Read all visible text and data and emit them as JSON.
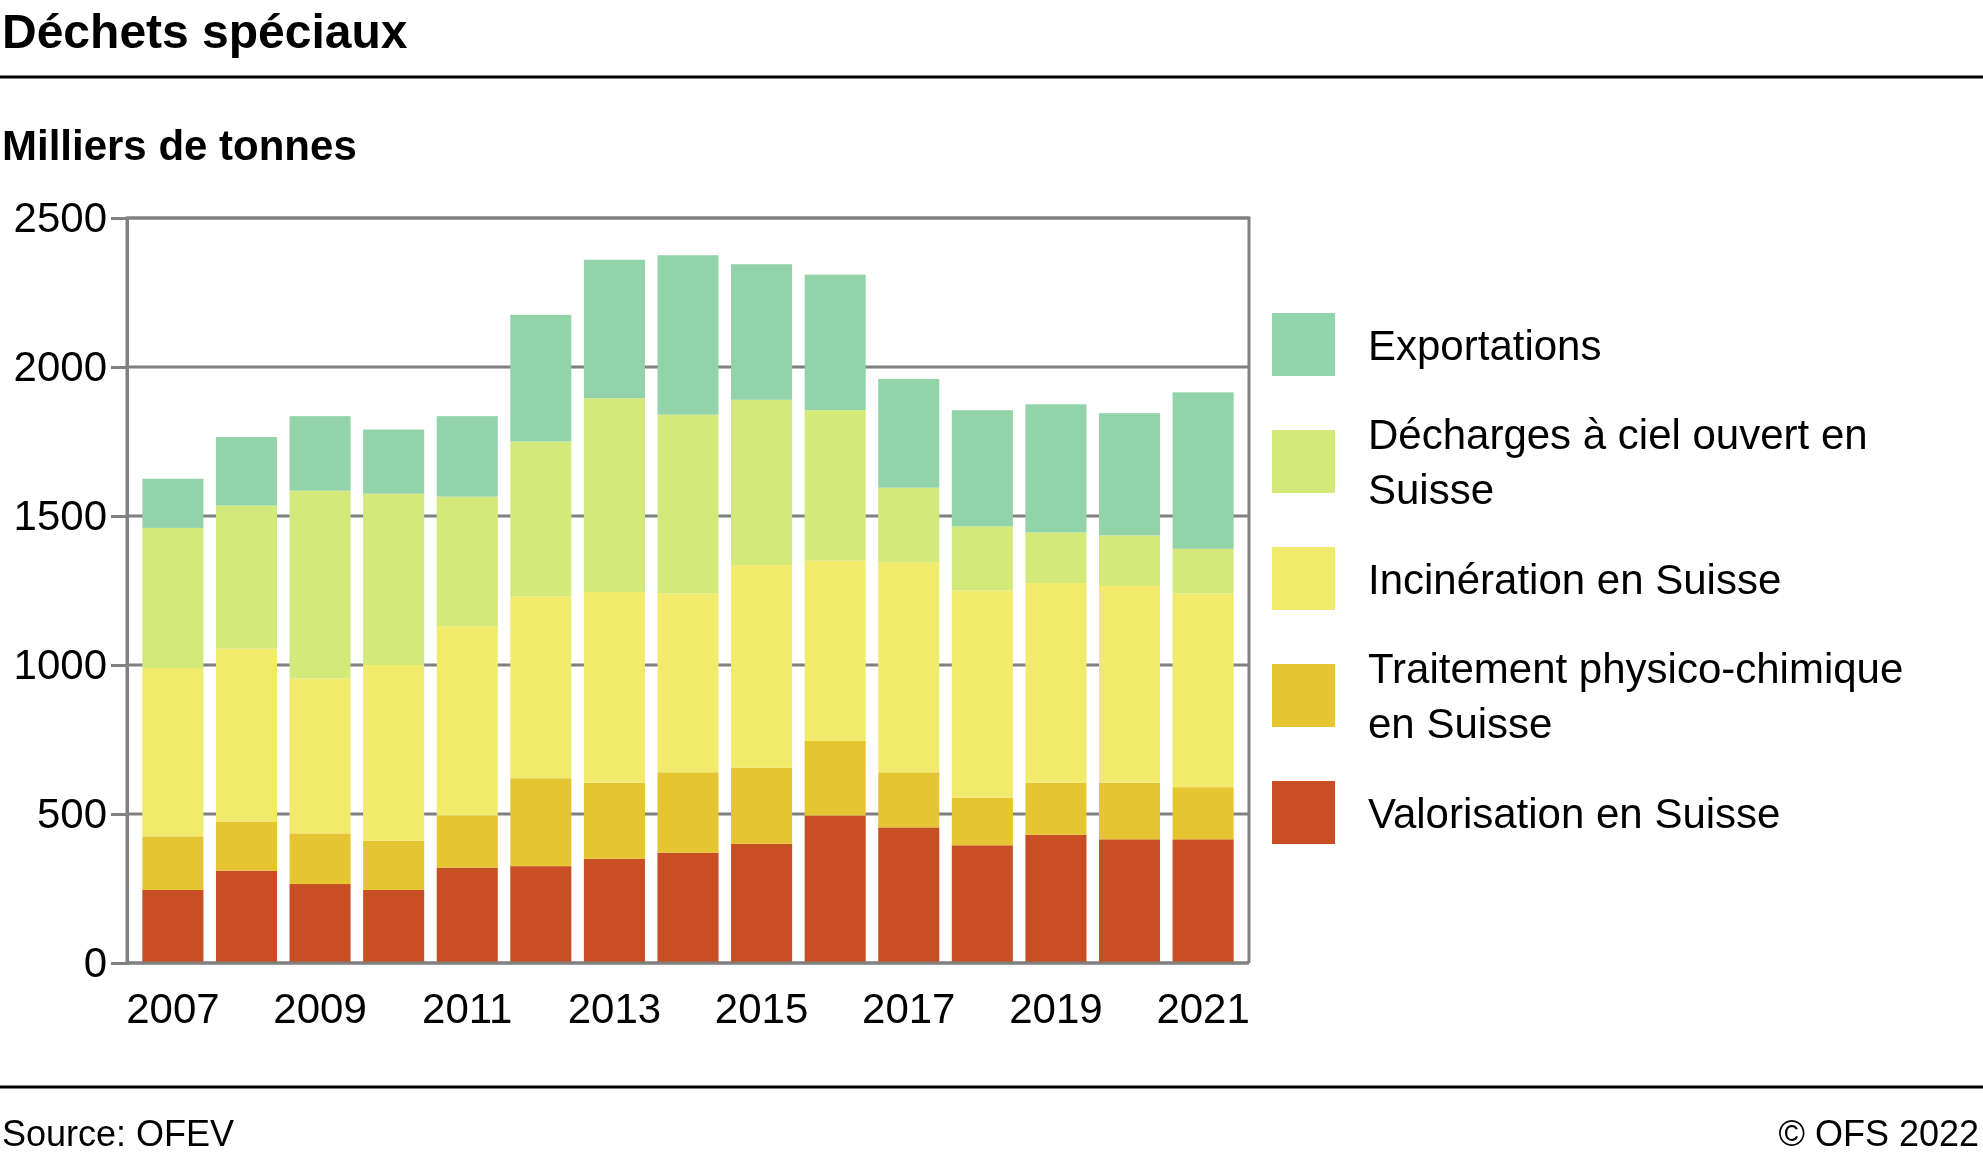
{
  "chart_data": {
    "type": "bar",
    "stacked": true,
    "title": "Déchets spéciaux",
    "ylabel": "Milliers de tonnes",
    "categories": [
      "2007",
      null,
      "2009",
      null,
      "2011",
      null,
      "2013",
      null,
      "2015",
      null,
      "2017",
      null,
      "2019",
      null,
      "2021"
    ],
    "series": [
      {
        "name": "Valorisation en Suisse",
        "color": "#c84f24",
        "values": [
          245,
          310,
          265,
          245,
          320,
          325,
          350,
          370,
          400,
          495,
          455,
          395,
          430,
          415,
          415
        ]
      },
      {
        "name": "Traitement physico-chimique en Suisse",
        "color": "#e6c532",
        "values": [
          180,
          165,
          170,
          165,
          175,
          295,
          255,
          270,
          255,
          250,
          185,
          160,
          175,
          190,
          175
        ]
      },
      {
        "name": "Incinération en Suisse",
        "color": "#f2ea6c",
        "values": [
          565,
          580,
          520,
          590,
          635,
          610,
          640,
          600,
          680,
          605,
          705,
          695,
          670,
          660,
          650
        ]
      },
      {
        "name": "Décharges à ciel ouvert en Suisse",
        "color": "#d3e97a",
        "values": [
          470,
          480,
          630,
          575,
          435,
          520,
          650,
          600,
          555,
          505,
          250,
          215,
          170,
          170,
          150
        ]
      },
      {
        "name": "Exportations",
        "color": "#93d3a9",
        "values": [
          165,
          230,
          250,
          215,
          270,
          425,
          465,
          535,
          455,
          455,
          365,
          390,
          430,
          410,
          525
        ]
      }
    ],
    "ylim": [
      0,
      2500
    ],
    "yticks": [
      0,
      500,
      1000,
      1500,
      2000,
      2500
    ],
    "grid": "y",
    "legend": "right",
    "annotations": [
      "Source: OFEV",
      "© OFS 2022"
    ]
  }
}
